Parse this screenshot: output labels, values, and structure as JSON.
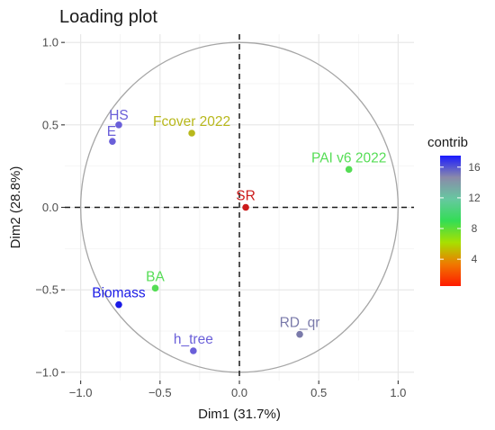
{
  "chart_data": {
    "type": "scatter",
    "title": "Loading plot",
    "xlabel": "Dim1 (31.7%)",
    "ylabel": "Dim2 (28.8%)",
    "xlim": [
      -1.1,
      1.1
    ],
    "ylim": [
      -1.05,
      1.05
    ],
    "x_ticks": [
      -1.0,
      -0.5,
      0.0,
      0.5,
      1.0
    ],
    "x_tick_labels": [
      "−1.0",
      "−0.5",
      "0.0",
      "0.5",
      "1.0"
    ],
    "y_ticks": [
      -1.0,
      -0.5,
      0.0,
      0.5,
      1.0
    ],
    "y_tick_labels": [
      "−1.0",
      "−0.5",
      "0.0",
      "0.5",
      "1.0"
    ],
    "grid": true,
    "unit_circle": true,
    "reference_lines": [
      0,
      0
    ],
    "points": [
      {
        "label": "HS",
        "x": -0.76,
        "y": 0.5,
        "contrib": 14,
        "color": "#6a5fd9"
      },
      {
        "label": "E",
        "x": -0.8,
        "y": 0.4,
        "contrib": 14,
        "color": "#6a5fd9"
      },
      {
        "label": "Fcover 2022",
        "x": -0.3,
        "y": 0.45,
        "contrib": 7,
        "color": "#b8b81c"
      },
      {
        "label": "PAI v6 2022",
        "x": 0.69,
        "y": 0.23,
        "contrib": 9.5,
        "color": "#55dd55"
      },
      {
        "label": "SR",
        "x": 0.04,
        "y": 0.0,
        "contrib": 1,
        "color": "#cc1b1b"
      },
      {
        "label": "BA",
        "x": -0.53,
        "y": -0.49,
        "contrib": 10,
        "color": "#55dd55"
      },
      {
        "label": "Biomass",
        "x": -0.76,
        "y": -0.59,
        "contrib": 17,
        "color": "#1a1ae6"
      },
      {
        "label": "h_tree",
        "x": -0.29,
        "y": -0.87,
        "contrib": 15,
        "color": "#6a5fd9"
      },
      {
        "label": "RD_qr",
        "x": 0.38,
        "y": -0.77,
        "contrib": 12.5,
        "color": "#7a7aaa"
      }
    ],
    "legend": {
      "title": "contrib",
      "placement": "right",
      "ticks": [
        4,
        8,
        12,
        16
      ],
      "range": [
        0.5,
        17.5
      ],
      "gradient": [
        "#ff1a00",
        "#f07800",
        "#a8e000",
        "#33dd55",
        "#66c8a0",
        "#8a8aaa",
        "#1a1aff"
      ]
    }
  }
}
